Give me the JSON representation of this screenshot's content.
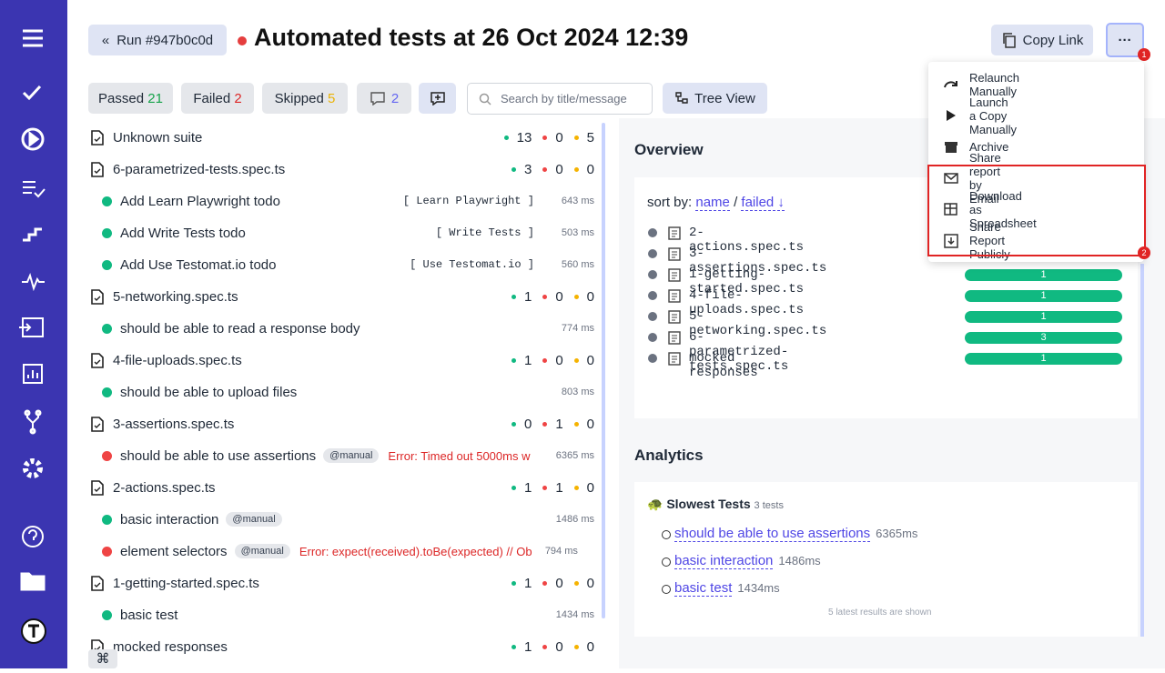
{
  "header": {
    "run": "Run #947b0c0d",
    "title": "Automated tests at 26 Oct 2024 12:39",
    "copy_link": "Copy Link",
    "more_badge": "1"
  },
  "filters": {
    "passed": {
      "label": "Passed",
      "count": 21
    },
    "failed": {
      "label": "Failed",
      "count": 2
    },
    "skipped": {
      "label": "Skipped",
      "count": 5
    },
    "comments": 2,
    "search_placeholder": "Search by title/message",
    "tree_view": "Tree View"
  },
  "tests": {
    "rows": [
      {
        "type": "suite",
        "name": "Unknown suite",
        "passed": 13,
        "failed": 0,
        "skipped": 5
      },
      {
        "type": "suite",
        "name": "6-parametrized-tests.spec.ts",
        "passed": 3,
        "failed": 0,
        "skipped": 0
      },
      {
        "type": "test",
        "status": "passed",
        "name": "Add Learn Playwright todo",
        "param": "[ Learn Playwright ]",
        "duration": "643 ms"
      },
      {
        "type": "test",
        "status": "passed",
        "name": "Add Write Tests todo",
        "param": "[ Write Tests ]",
        "duration": "503 ms"
      },
      {
        "type": "test",
        "status": "passed",
        "name": "Add Use Testomat.io todo",
        "param": "[ Use Testomat.io ]",
        "duration": "560 ms"
      },
      {
        "type": "suite",
        "name": "5-networking.spec.ts",
        "passed": 1,
        "failed": 0,
        "skipped": 0
      },
      {
        "type": "test",
        "status": "passed",
        "name": "should be able to read a response body",
        "duration": "774 ms"
      },
      {
        "type": "suite",
        "name": "4-file-uploads.spec.ts",
        "passed": 1,
        "failed": 0,
        "skipped": 0
      },
      {
        "type": "test",
        "status": "passed",
        "name": "should be able to upload files",
        "duration": "803 ms"
      },
      {
        "type": "suite",
        "name": "3-assertions.spec.ts",
        "passed": 0,
        "failed": 1,
        "skipped": 0
      },
      {
        "type": "test",
        "status": "failed",
        "name": "should be able to use assertions",
        "tag": "@manual",
        "error": "Error: Timed out 5000ms w",
        "duration": "6365 ms"
      },
      {
        "type": "suite",
        "name": "2-actions.spec.ts",
        "passed": 1,
        "failed": 1,
        "skipped": 0
      },
      {
        "type": "test",
        "status": "passed",
        "name": "basic interaction",
        "tag": "@manual",
        "duration": "1486 ms"
      },
      {
        "type": "test",
        "status": "failed",
        "name": "element selectors",
        "tag": "@manual",
        "error": "Error: expect(received).toBe(expected) // Ob",
        "duration": "794 ms"
      },
      {
        "type": "suite",
        "name": "1-getting-started.spec.ts",
        "passed": 1,
        "failed": 0,
        "skipped": 0
      },
      {
        "type": "test",
        "status": "passed",
        "name": "basic test",
        "duration": "1434 ms"
      },
      {
        "type": "suite",
        "name": "mocked responses",
        "passed": 1,
        "failed": 0,
        "skipped": 0
      }
    ]
  },
  "overview": {
    "title": "Overview",
    "sort_by": "sort by:",
    "sort_name": "name",
    "sort_sep": "/",
    "sort_failed": "failed ↓",
    "files": [
      {
        "name": "2-actions.spec.ts"
      },
      {
        "name": "3-assertions.spec.ts"
      },
      {
        "name": "1-getting-started.spec.ts",
        "count": 1
      },
      {
        "name": "4-file-uploads.spec.ts",
        "count": 1
      },
      {
        "name": "5-networking.spec.ts",
        "count": 1
      },
      {
        "name": "6-parametrized-tests.spec.ts",
        "count": 3
      },
      {
        "name": "mocked responses",
        "count": 1
      }
    ]
  },
  "analytics": {
    "title": "Analytics",
    "slowest_title": "Slowest Tests",
    "slowest_count": "3 tests",
    "items": [
      {
        "name": "should be able to use assertions",
        "time": "6365ms"
      },
      {
        "name": "basic interaction",
        "time": "1486ms"
      },
      {
        "name": "basic test",
        "time": "1434ms"
      }
    ],
    "note": "5 latest results are shown"
  },
  "menu": {
    "items": [
      "Relaunch Manually",
      "Launch a Copy Manually",
      "Archive",
      "Share report by Email",
      "Download as Spreadsheet",
      "Share Report Publicly"
    ],
    "badge": "2"
  },
  "footer": {
    "key": "⌘"
  }
}
